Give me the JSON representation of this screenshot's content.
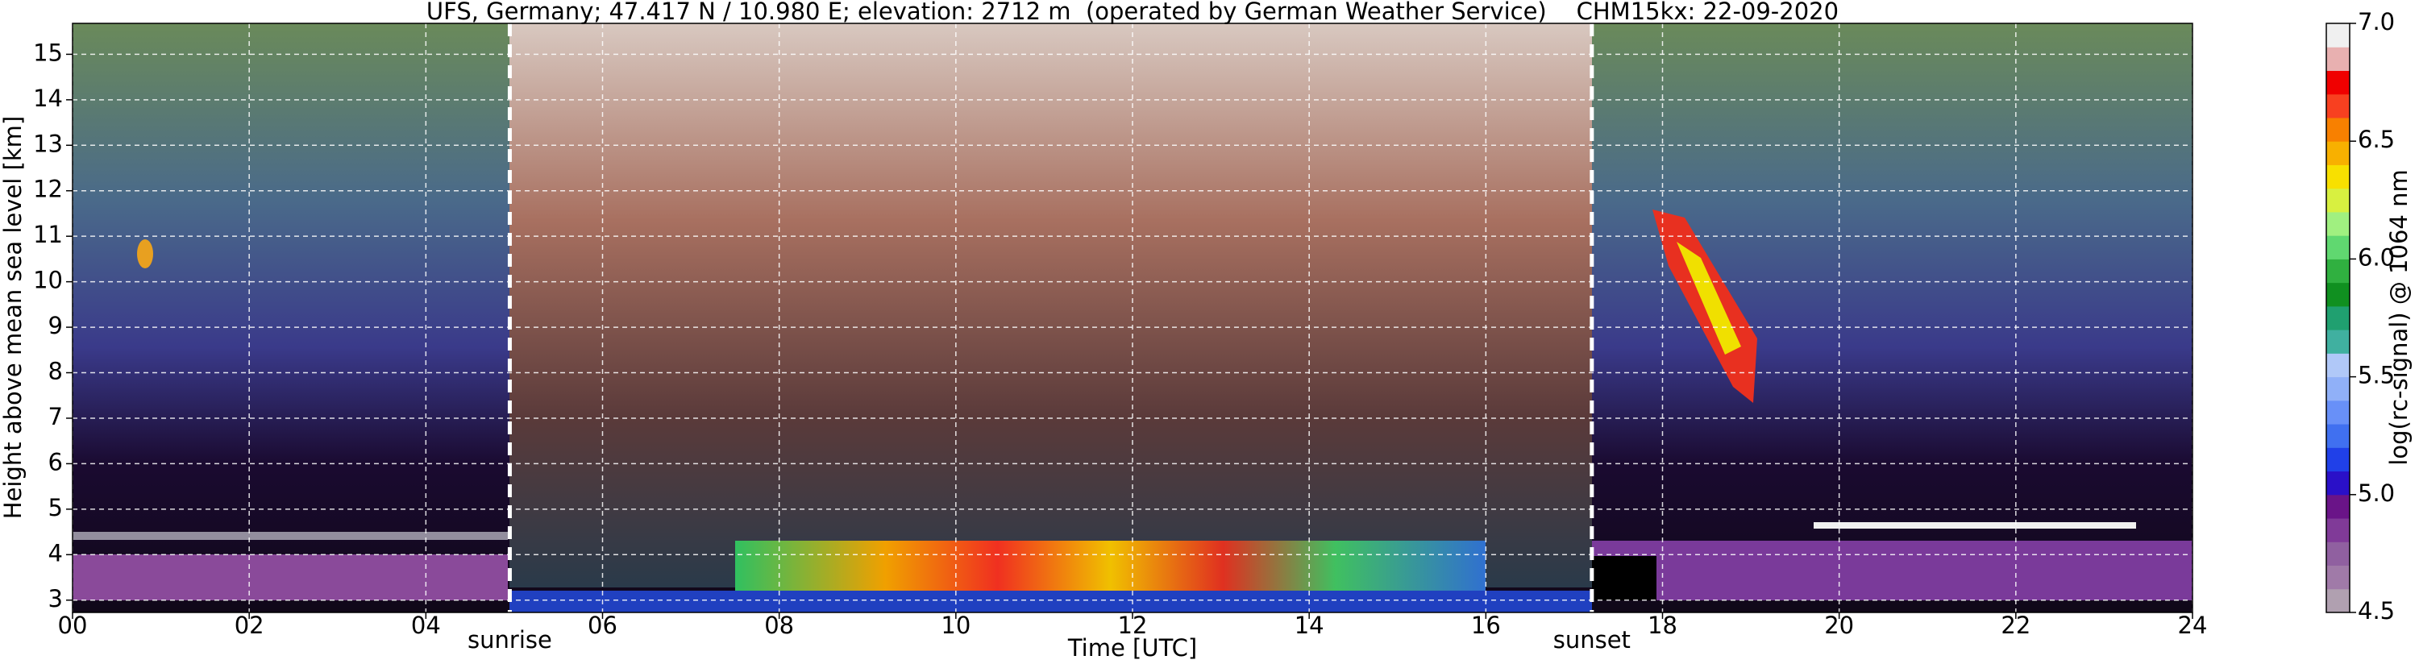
{
  "chart_data": {
    "type": "heatmap",
    "title": "UFS, Germany; 47.417 N / 10.980 E; elevation: 2712 m  (operated by German Weather Service)    CHM15kx: 22-09-2020",
    "x_label": "Time [UTC]",
    "y_label": "Height above mean sea level [km]",
    "xlim": [
      0,
      24
    ],
    "xticks": [
      {
        "value": 0,
        "label": "00"
      },
      {
        "value": 2,
        "label": "02"
      },
      {
        "value": 4,
        "label": "04"
      },
      {
        "value": 6,
        "label": "06"
      },
      {
        "value": 8,
        "label": "08"
      },
      {
        "value": 10,
        "label": "10"
      },
      {
        "value": 12,
        "label": "12"
      },
      {
        "value": 14,
        "label": "14"
      },
      {
        "value": 16,
        "label": "16"
      },
      {
        "value": 18,
        "label": "18"
      },
      {
        "value": 20,
        "label": "20"
      },
      {
        "value": 22,
        "label": "22"
      },
      {
        "value": 24,
        "label": "24"
      }
    ],
    "ylim": [
      2.73,
      15.68
    ],
    "yticks": [
      3,
      4,
      5,
      6,
      7,
      8,
      9,
      10,
      11,
      12,
      13,
      14,
      15
    ],
    "grid": true,
    "annotations": [
      {
        "label": "sunrise",
        "x": 4.95
      },
      {
        "label": "sunset",
        "x": 17.2
      }
    ],
    "colorbar": {
      "label": "log(rc-signal) @ 1064 nm",
      "lim": [
        4.5,
        7.0
      ],
      "ticks": [
        {
          "value": 4.5,
          "label": "4.5"
        },
        {
          "value": 5.0,
          "label": "5.0"
        },
        {
          "value": 5.5,
          "label": "5.5"
        },
        {
          "value": 6.0,
          "label": "6.0"
        },
        {
          "value": 6.5,
          "label": "6.5"
        },
        {
          "value": 7.0,
          "label": "7.0"
        }
      ],
      "colors": [
        "#b0a0b0",
        "#a07aa8",
        "#9060a0",
        "#803a98",
        "#6a1488",
        "#2a10c8",
        "#2040e8",
        "#4070f0",
        "#6890f8",
        "#90b0f8",
        "#b0c8f8",
        "#40b0a0",
        "#20a070",
        "#109020",
        "#30b040",
        "#60d870",
        "#a0f080",
        "#d8f040",
        "#f8e000",
        "#f8b000",
        "#f88000",
        "#f84020",
        "#f00000",
        "#e8b0b0",
        "#f0f0f0"
      ]
    }
  }
}
